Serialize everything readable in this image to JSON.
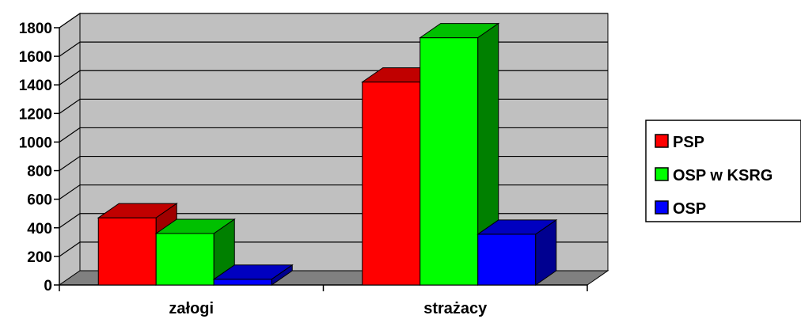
{
  "chart_data": {
    "type": "bar",
    "categories": [
      "załogi",
      "strażacy"
    ],
    "series": [
      {
        "name": "PSP",
        "values": [
          470,
          1420
        ],
        "color": "#ff0000",
        "top": "#c00000",
        "side": "#a00000"
      },
      {
        "name": "OSP w KSRG",
        "values": [
          360,
          1730
        ],
        "color": "#00ff00",
        "top": "#00c000",
        "side": "#008000"
      },
      {
        "name": "OSP",
        "values": [
          40,
          355
        ],
        "color": "#0000ff",
        "top": "#0000c0",
        "side": "#000090"
      }
    ],
    "ylim": [
      0,
      1800
    ],
    "yticks": [
      0,
      200,
      400,
      600,
      800,
      1000,
      1200,
      1400,
      1600,
      1800
    ],
    "grid": true,
    "legend": "right",
    "background": "#c0c0c0",
    "floor": "#808080"
  }
}
